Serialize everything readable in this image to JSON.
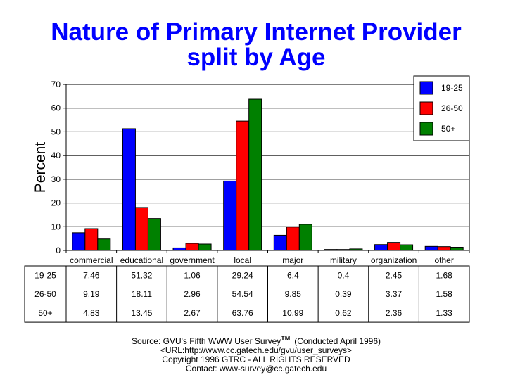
{
  "chart_data": {
    "type": "bar",
    "title": "Nature of Primary Internet Provider",
    "subtitle": "split by Age",
    "xlabel": "",
    "ylabel": "Percent",
    "ylim": [
      0,
      70
    ],
    "yticks": [
      0,
      10,
      20,
      30,
      40,
      50,
      60,
      70
    ],
    "grid": true,
    "legend": "top-right",
    "categories": [
      "commercial",
      "educational",
      "government",
      "local",
      "major",
      "military",
      "organization",
      "other"
    ],
    "series": [
      {
        "name": "19-25",
        "color": "#0000ff",
        "values": [
          7.46,
          51.32,
          1.06,
          29.24,
          6.4,
          0.4,
          2.45,
          1.68
        ]
      },
      {
        "name": "26-50",
        "color": "#ff0000",
        "values": [
          9.19,
          18.11,
          2.96,
          54.54,
          9.85,
          0.39,
          3.37,
          1.58
        ]
      },
      {
        "name": "50+",
        "color": "#008000",
        "values": [
          4.83,
          13.45,
          2.67,
          63.76,
          10.99,
          0.62,
          2.36,
          1.33
        ]
      }
    ],
    "table_values": [
      [
        "7.46",
        "51.32",
        "1.06",
        "29.24",
        "6.4",
        "0.4",
        "2.45",
        "1.68"
      ],
      [
        "9.19",
        "18.11",
        "2.96",
        "54.54",
        "9.85",
        "0.39",
        "3.37",
        "1.58"
      ],
      [
        "4.83",
        "13.45",
        "2.67",
        "63.76",
        "10.99",
        "0.62",
        "2.36",
        "1.33"
      ]
    ]
  },
  "footer": {
    "source": "Source: GVU's Fifth WWW User Survey",
    "tm": "TM",
    "conducted": "(Conducted April 1996)",
    "url": "<URL:http://www.cc.gatech.edu/gvu/user_surveys>",
    "copyright": "Copyright 1996 GTRC -  ALL RIGHTS RESERVED",
    "contact": "Contact: www-survey@cc.gatech.edu"
  }
}
